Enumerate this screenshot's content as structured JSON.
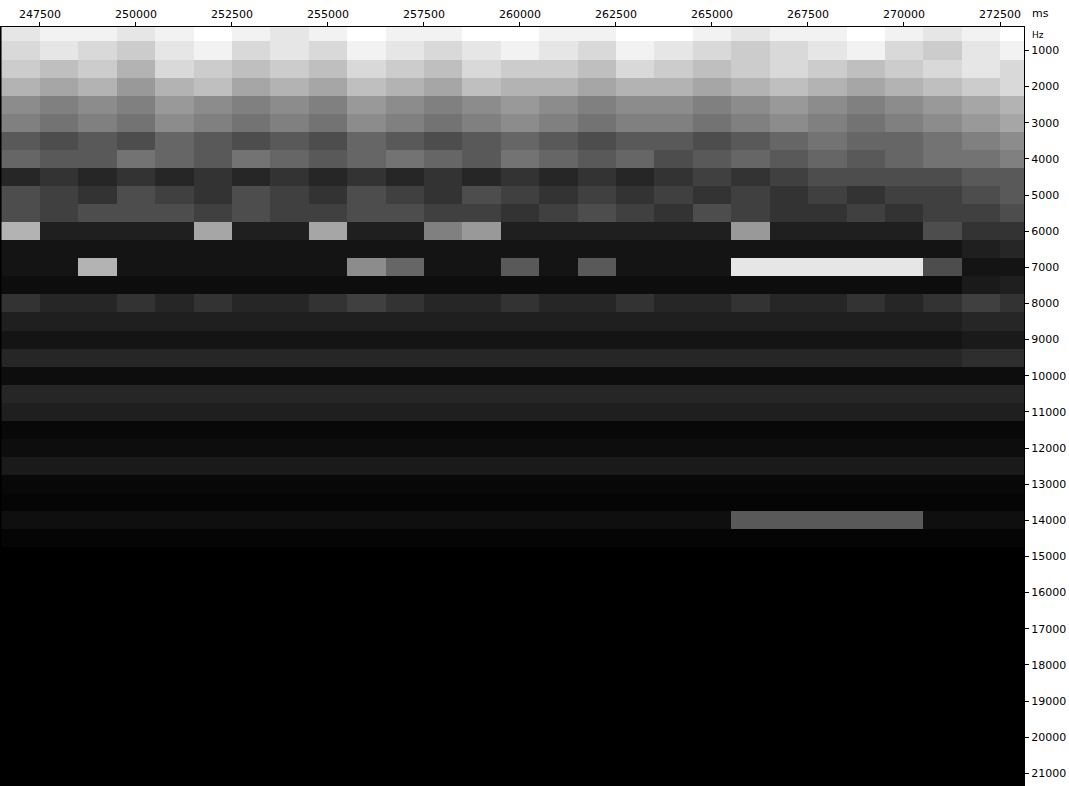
{
  "chart_data": {
    "type": "heatmap",
    "xlabel": "ms",
    "ylabel": "Hz",
    "color": "#ffffff",
    "grid": false,
    "xlim": [
      246460,
      273125
    ],
    "ylim": [
      21350,
      350
    ],
    "xticks": [
      247500,
      250000,
      252500,
      255000,
      257500,
      260000,
      262500,
      265000,
      267500,
      270000,
      272500
    ],
    "yticks": [
      1000,
      2000,
      3000,
      4000,
      5000,
      6000,
      7000,
      8000,
      9000,
      10000,
      11000,
      12000,
      13000,
      14000,
      15000,
      16000,
      17000,
      18000,
      19000,
      20000,
      21000
    ],
    "zlim": [
      0,
      100
    ],
    "x": [
      247000,
      248000,
      249000,
      250000,
      251000,
      252000,
      253000,
      254000,
      255000,
      256000,
      257000,
      258000,
      259000,
      260000,
      261000,
      262000,
      263000,
      264000,
      265000,
      266000,
      267000,
      268000,
      269000,
      270000,
      271000,
      272000,
      273000
    ],
    "y": [
      500,
      1000,
      1500,
      2000,
      2500,
      3000,
      3500,
      4000,
      4500,
      5000,
      5500,
      6000,
      6500,
      7000,
      7500,
      8000,
      8500,
      9000,
      9500,
      10000,
      10500,
      11000,
      11500,
      12000,
      12500,
      13000,
      13500,
      14000,
      14500
    ],
    "z": [
      [
        90,
        95,
        95,
        90,
        95,
        100,
        95,
        90,
        95,
        100,
        95,
        95,
        100,
        100,
        95,
        95,
        100,
        100,
        95,
        90,
        95,
        95,
        100,
        95,
        90,
        95,
        100
      ],
      [
        85,
        90,
        85,
        80,
        90,
        95,
        85,
        90,
        85,
        95,
        90,
        85,
        90,
        95,
        90,
        85,
        95,
        90,
        85,
        80,
        85,
        90,
        95,
        85,
        80,
        90,
        95
      ],
      [
        80,
        75,
        80,
        70,
        85,
        80,
        75,
        80,
        75,
        85,
        80,
        75,
        85,
        80,
        80,
        75,
        85,
        80,
        75,
        80,
        85,
        80,
        75,
        80,
        85,
        90,
        85
      ],
      [
        70,
        65,
        70,
        60,
        70,
        75,
        65,
        70,
        65,
        75,
        70,
        65,
        75,
        70,
        70,
        65,
        70,
        70,
        65,
        70,
        75,
        70,
        65,
        70,
        75,
        80,
        85
      ],
      [
        55,
        50,
        55,
        50,
        60,
        55,
        50,
        55,
        50,
        60,
        55,
        50,
        55,
        60,
        55,
        50,
        55,
        55,
        50,
        55,
        60,
        55,
        50,
        55,
        60,
        65,
        70
      ],
      [
        50,
        45,
        50,
        45,
        55,
        50,
        45,
        50,
        45,
        55,
        50,
        45,
        50,
        55,
        50,
        45,
        50,
        50,
        45,
        50,
        55,
        50,
        45,
        50,
        55,
        60,
        65
      ],
      [
        35,
        30,
        35,
        30,
        40,
        35,
        30,
        35,
        30,
        40,
        35,
        30,
        35,
        40,
        35,
        30,
        35,
        35,
        30,
        35,
        40,
        45,
        40,
        40,
        45,
        50,
        55
      ],
      [
        40,
        35,
        35,
        45,
        40,
        35,
        45,
        40,
        35,
        40,
        45,
        40,
        35,
        45,
        40,
        35,
        40,
        30,
        35,
        40,
        35,
        40,
        35,
        40,
        45,
        45,
        50
      ],
      [
        15,
        20,
        15,
        20,
        15,
        20,
        15,
        20,
        15,
        20,
        15,
        20,
        15,
        20,
        15,
        20,
        15,
        20,
        25,
        20,
        25,
        30,
        30,
        30,
        30,
        35,
        35
      ],
      [
        30,
        25,
        20,
        30,
        25,
        20,
        30,
        25,
        20,
        30,
        25,
        20,
        30,
        25,
        20,
        25,
        20,
        25,
        20,
        25,
        20,
        25,
        20,
        25,
        25,
        30,
        35
      ],
      [
        30,
        25,
        30,
        30,
        30,
        25,
        30,
        25,
        25,
        30,
        30,
        25,
        25,
        20,
        25,
        30,
        25,
        20,
        30,
        25,
        20,
        20,
        25,
        20,
        25,
        25,
        30
      ],
      [
        70,
        12,
        12,
        12,
        12,
        65,
        12,
        12,
        65,
        12,
        12,
        50,
        60,
        12,
        12,
        12,
        12,
        12,
        12,
        60,
        12,
        12,
        12,
        12,
        30,
        20,
        20
      ],
      [
        8,
        8,
        8,
        8,
        8,
        8,
        8,
        8,
        8,
        8,
        8,
        8,
        8,
        8,
        8,
        8,
        8,
        8,
        8,
        8,
        8,
        8,
        8,
        8,
        8,
        12,
        15
      ],
      [
        8,
        8,
        70,
        8,
        8,
        8,
        8,
        8,
        8,
        55,
        40,
        8,
        8,
        35,
        8,
        35,
        8,
        8,
        8,
        90,
        90,
        90,
        90,
        90,
        30,
        8,
        8
      ],
      [
        5,
        5,
        5,
        5,
        5,
        5,
        5,
        5,
        5,
        5,
        5,
        5,
        5,
        5,
        5,
        5,
        5,
        5,
        5,
        5,
        5,
        5,
        5,
        5,
        5,
        10,
        12
      ],
      [
        20,
        15,
        15,
        20,
        15,
        20,
        15,
        15,
        20,
        25,
        20,
        15,
        15,
        20,
        15,
        15,
        20,
        15,
        15,
        20,
        15,
        15,
        20,
        15,
        20,
        25,
        20
      ],
      [
        12,
        12,
        12,
        12,
        12,
        12,
        12,
        12,
        12,
        12,
        12,
        12,
        12,
        12,
        12,
        12,
        12,
        12,
        12,
        12,
        12,
        12,
        12,
        12,
        12,
        15,
        15
      ],
      [
        8,
        8,
        8,
        8,
        8,
        8,
        8,
        8,
        8,
        8,
        8,
        8,
        8,
        8,
        8,
        8,
        8,
        8,
        8,
        8,
        8,
        8,
        8,
        8,
        8,
        10,
        10
      ],
      [
        15,
        15,
        15,
        15,
        15,
        15,
        15,
        15,
        15,
        15,
        15,
        15,
        15,
        15,
        15,
        15,
        15,
        15,
        15,
        15,
        15,
        15,
        15,
        15,
        15,
        18,
        18
      ],
      [
        5,
        5,
        5,
        5,
        5,
        5,
        5,
        5,
        5,
        5,
        5,
        5,
        5,
        5,
        5,
        5,
        5,
        5,
        5,
        5,
        5,
        5,
        5,
        5,
        5,
        5,
        5
      ],
      [
        15,
        15,
        15,
        15,
        15,
        15,
        15,
        15,
        15,
        15,
        15,
        15,
        15,
        15,
        15,
        15,
        15,
        15,
        15,
        15,
        15,
        15,
        15,
        15,
        15,
        15,
        15
      ],
      [
        12,
        12,
        12,
        12,
        12,
        12,
        12,
        12,
        12,
        12,
        12,
        12,
        12,
        12,
        12,
        12,
        12,
        12,
        12,
        12,
        12,
        12,
        12,
        12,
        12,
        12,
        12
      ],
      [
        3,
        3,
        3,
        3,
        3,
        3,
        3,
        3,
        3,
        3,
        3,
        3,
        3,
        3,
        3,
        3,
        3,
        3,
        3,
        3,
        3,
        3,
        3,
        3,
        3,
        3,
        3
      ],
      [
        5,
        5,
        5,
        5,
        5,
        5,
        5,
        5,
        5,
        5,
        5,
        5,
        5,
        5,
        5,
        5,
        5,
        5,
        5,
        5,
        5,
        5,
        5,
        5,
        5,
        5,
        5
      ],
      [
        10,
        10,
        10,
        10,
        10,
        10,
        10,
        10,
        10,
        10,
        10,
        10,
        10,
        10,
        10,
        10,
        10,
        10,
        10,
        10,
        10,
        10,
        10,
        10,
        10,
        10,
        10
      ],
      [
        3,
        3,
        3,
        3,
        3,
        3,
        3,
        3,
        3,
        3,
        3,
        3,
        3,
        3,
        3,
        3,
        3,
        3,
        3,
        3,
        3,
        3,
        3,
        3,
        3,
        3,
        3
      ],
      [
        2,
        2,
        2,
        2,
        2,
        2,
        2,
        2,
        2,
        2,
        2,
        2,
        2,
        2,
        2,
        2,
        2,
        2,
        2,
        2,
        2,
        2,
        2,
        2,
        2,
        2,
        2
      ],
      [
        6,
        6,
        6,
        6,
        6,
        6,
        6,
        6,
        6,
        6,
        6,
        6,
        6,
        6,
        6,
        6,
        6,
        6,
        6,
        35,
        35,
        35,
        35,
        35,
        6,
        6,
        6
      ],
      [
        2,
        2,
        2,
        2,
        2,
        2,
        2,
        2,
        2,
        2,
        2,
        2,
        2,
        2,
        2,
        2,
        2,
        2,
        2,
        2,
        2,
        2,
        2,
        2,
        2,
        2,
        2
      ]
    ]
  }
}
